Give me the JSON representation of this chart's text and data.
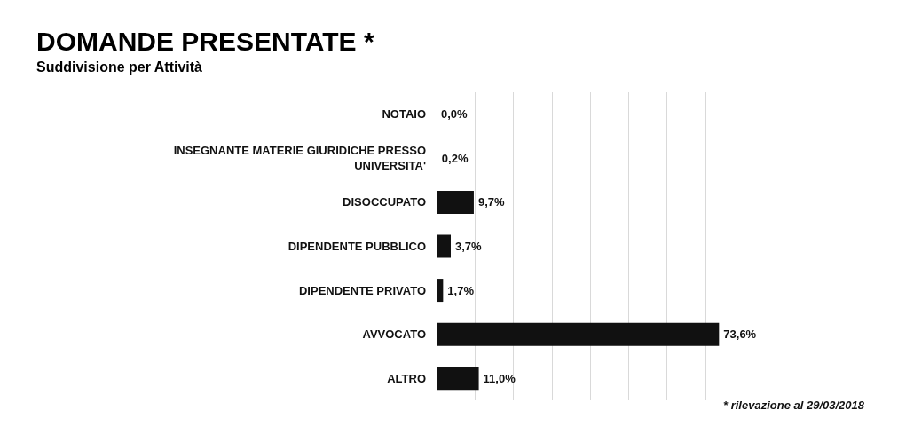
{
  "chart_data": {
    "type": "bar",
    "orientation": "horizontal",
    "title": "DOMANDE PRESENTATE *",
    "subtitle": "Suddivisione per Attività",
    "categories": [
      "NOTAIO",
      "INSEGNANTE MATERIE GIURIDICHE PRESSO\nUNIVERSITA'",
      "DISOCCUPATO",
      "DIPENDENTE PUBBLICO",
      "DIPENDENTE PRIVATO",
      "AVVOCATO",
      "ALTRO"
    ],
    "values": [
      0.0,
      0.2,
      9.7,
      3.7,
      1.7,
      73.6,
      11.0
    ],
    "value_labels": [
      "0,0%",
      "0,2%",
      "9,7%",
      "3,7%",
      "1,7%",
      "73,6%",
      "11,0%"
    ],
    "color": "#111111",
    "xlim": [
      0,
      80
    ],
    "xticks": [
      {
        "value": 0,
        "label": null
      },
      {
        "value": 10,
        "label": null
      },
      {
        "value": 20,
        "label": null
      },
      {
        "value": 30,
        "label": null
      },
      {
        "value": 40,
        "label": null
      },
      {
        "value": 50,
        "label": null
      },
      {
        "value": 60,
        "label": null
      },
      {
        "value": 70,
        "label": null
      },
      {
        "value": 80,
        "label": null
      }
    ],
    "grid": "x",
    "tick_labels": "y",
    "annotations": [
      "* rilevazione al 29/03/2018"
    ]
  }
}
